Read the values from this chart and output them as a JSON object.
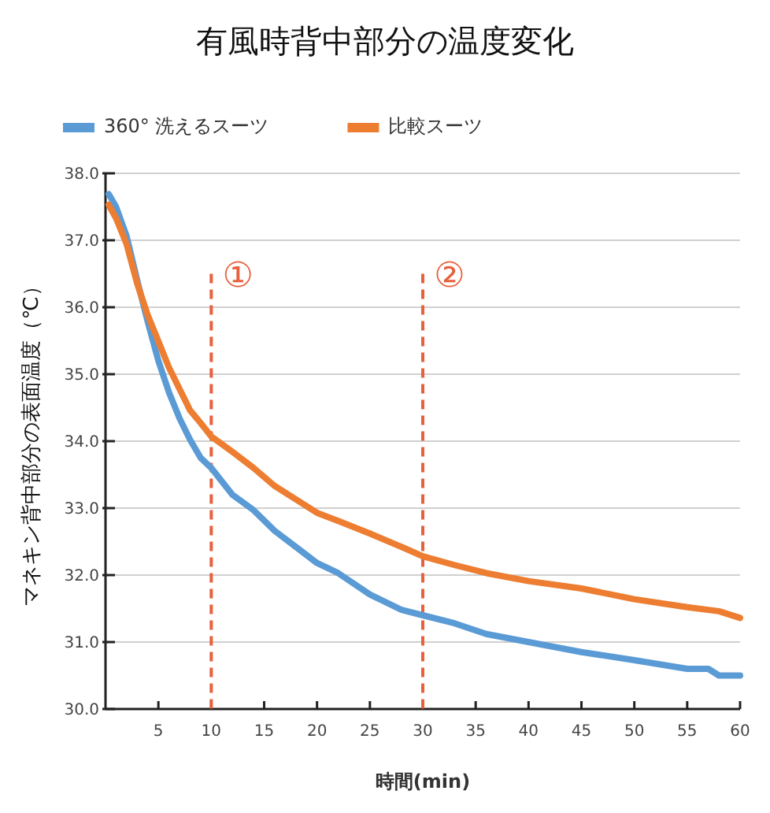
{
  "chart_data": {
    "type": "line",
    "title": "有風時背中部分の温度変化",
    "xlabel": "時間(min)",
    "ylabel": "マネキン背中部分の表面温度（℃）",
    "xlim": [
      0,
      60
    ],
    "xticks": [
      5,
      10,
      15,
      20,
      25,
      30,
      35,
      40,
      45,
      50,
      55,
      60
    ],
    "ylim": [
      30,
      38
    ],
    "yticks": [
      {
        "value": 30,
        "label": "30.0"
      },
      {
        "value": 31,
        "label": "31.0"
      },
      {
        "value": 32,
        "label": "32.0"
      },
      {
        "value": 33,
        "label": "33.0"
      },
      {
        "value": 34,
        "label": "34.0"
      },
      {
        "value": 35,
        "label": "35.0"
      },
      {
        "value": 36,
        "label": "36.0"
      },
      {
        "value": 37,
        "label": "37.0"
      },
      {
        "value": 38,
        "label": "38.0"
      }
    ],
    "grid": "y",
    "legend": "top",
    "marker": "none",
    "line_style": "solid",
    "series": [
      {
        "name": "360° 洗えるスーツ",
        "color": "#5b9bd5",
        "x": [
          0.3,
          1,
          2,
          3,
          4,
          5,
          6,
          7,
          8,
          9,
          10,
          12,
          14,
          16,
          18,
          20,
          22,
          25,
          28,
          30,
          33,
          36,
          40,
          45,
          50,
          55,
          57,
          58,
          60
        ],
        "values": [
          37.69,
          37.5,
          37.06,
          36.4,
          35.78,
          35.2,
          34.73,
          34.34,
          34.02,
          33.75,
          33.6,
          33.2,
          32.97,
          32.66,
          32.42,
          32.18,
          32.03,
          31.71,
          31.48,
          31.4,
          31.28,
          31.12,
          31.0,
          30.85,
          30.73,
          30.6,
          30.6,
          30.5,
          30.5
        ]
      },
      {
        "name": "比較スーツ",
        "color": "#ed7d31",
        "x": [
          0.3,
          1,
          2,
          3,
          4,
          5,
          6,
          7,
          8,
          9,
          10,
          12,
          14,
          16,
          18,
          20,
          22,
          25,
          28,
          30,
          33,
          36,
          40,
          45,
          50,
          55,
          58,
          60
        ],
        "values": [
          37.53,
          37.33,
          36.94,
          36.35,
          35.88,
          35.49,
          35.1,
          34.78,
          34.46,
          34.27,
          34.07,
          33.84,
          33.6,
          33.33,
          33.13,
          32.93,
          32.81,
          32.62,
          32.42,
          32.28,
          32.15,
          32.03,
          31.91,
          31.8,
          31.64,
          31.52,
          31.46,
          31.36
        ]
      }
    ],
    "ref_lines": [
      {
        "axis": "x",
        "value": 10,
        "label": "①",
        "color": "#e8603c",
        "line_style": "dashed"
      },
      {
        "axis": "x",
        "value": 30,
        "label": "②",
        "color": "#e8603c",
        "line_style": "dashed"
      }
    ]
  }
}
